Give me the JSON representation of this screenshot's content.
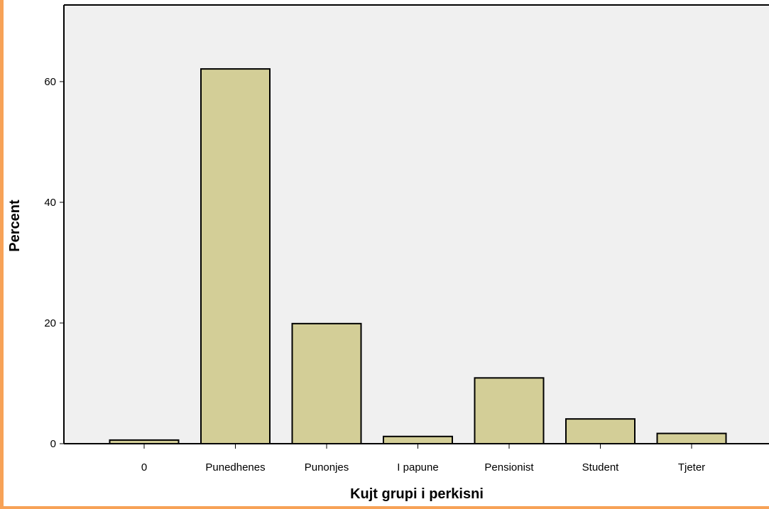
{
  "colors": {
    "plot_background": "#f0f0f0",
    "bar_fill": "#d3ce97",
    "bar_stroke": "#000000",
    "frame_accent": "#f7a257"
  },
  "chart_data": {
    "type": "bar",
    "title": "",
    "xlabel": "Kujt grupi i perkisni",
    "ylabel": "Percent",
    "categories": [
      "0",
      "Punedhenes",
      "Punonjes",
      "I papune",
      "Pensionist",
      "Student",
      "Tjeter"
    ],
    "values": [
      0.6,
      62.1,
      19.9,
      1.2,
      10.9,
      4.1,
      1.7
    ],
    "ylim": [
      0,
      72.7
    ],
    "yticks": [
      0,
      20,
      40,
      60
    ],
    "ytick_labels": [
      "0",
      "20",
      "40",
      "60"
    ],
    "grid": false,
    "legend": "none"
  }
}
